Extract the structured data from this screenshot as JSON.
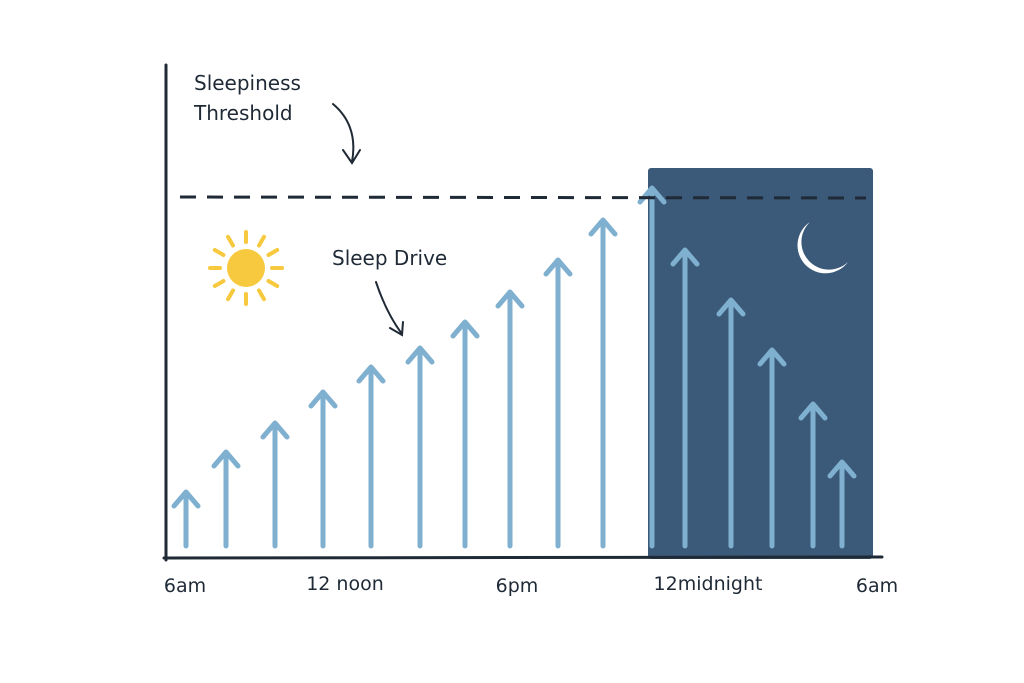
{
  "threshold_label": {
    "line1": "Sleepiness",
    "line2": "Threshold"
  },
  "sleep_drive_label": "Sleep Drive",
  "time_labels": [
    "6am",
    "12 noon",
    "6pm",
    "12midnight",
    "6am"
  ]
}
